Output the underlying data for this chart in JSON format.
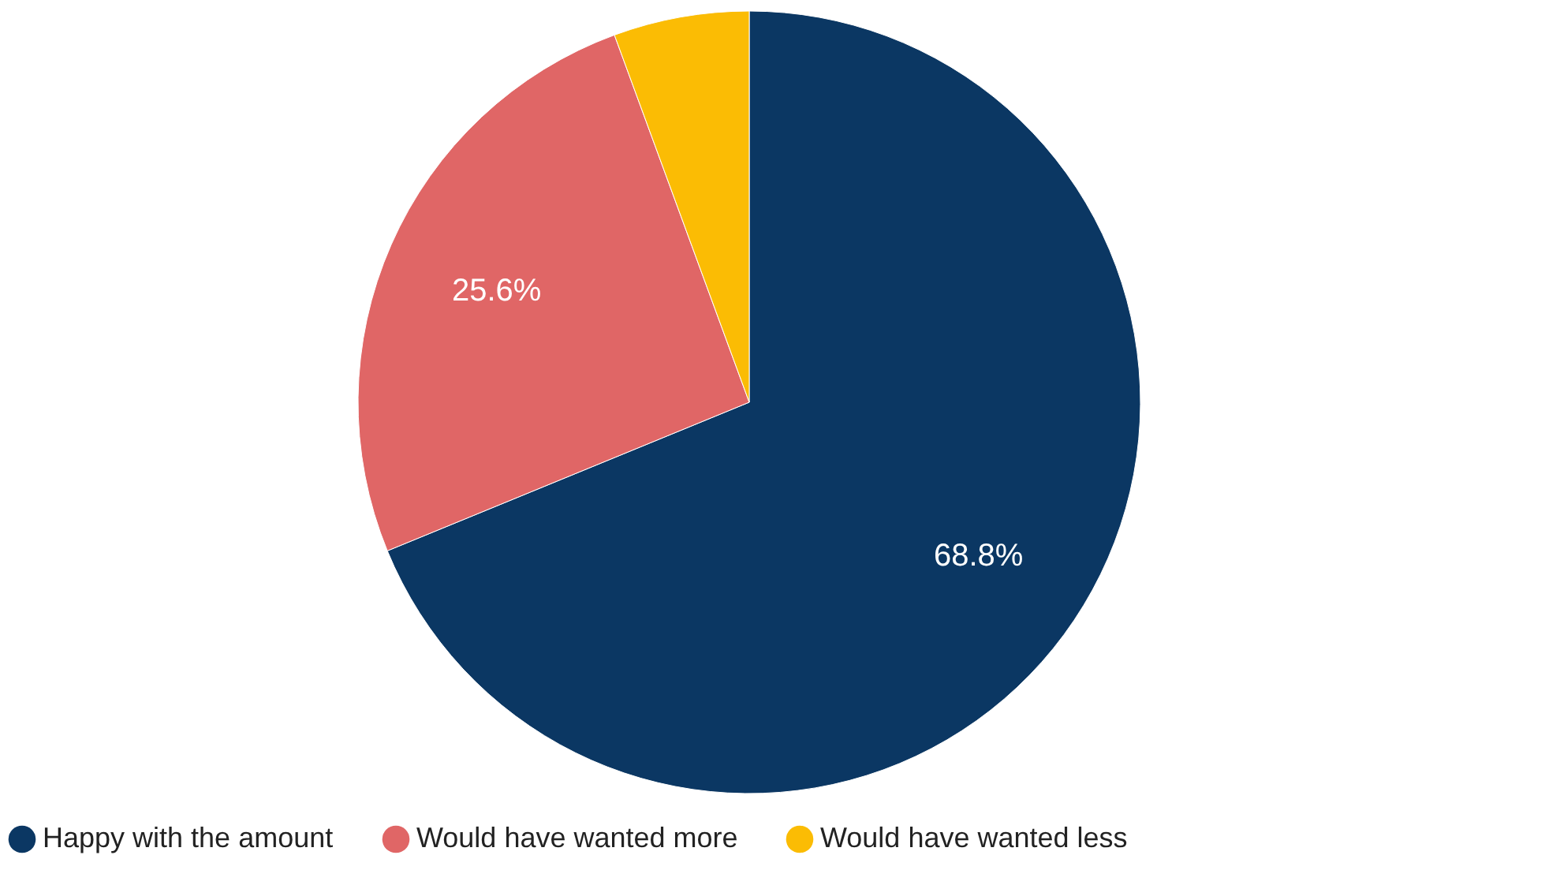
{
  "chart_data": {
    "type": "pie",
    "categories": [
      "Happy with the amount",
      "Would have wanted more",
      "Would have wanted less"
    ],
    "values": [
      68.8,
      25.6,
      5.6
    ],
    "colors": [
      "#0b3763",
      "#e06666",
      "#fbbc04"
    ],
    "value_labels": [
      "68.8%",
      "25.6%",
      null
    ],
    "legend": "bottom"
  }
}
